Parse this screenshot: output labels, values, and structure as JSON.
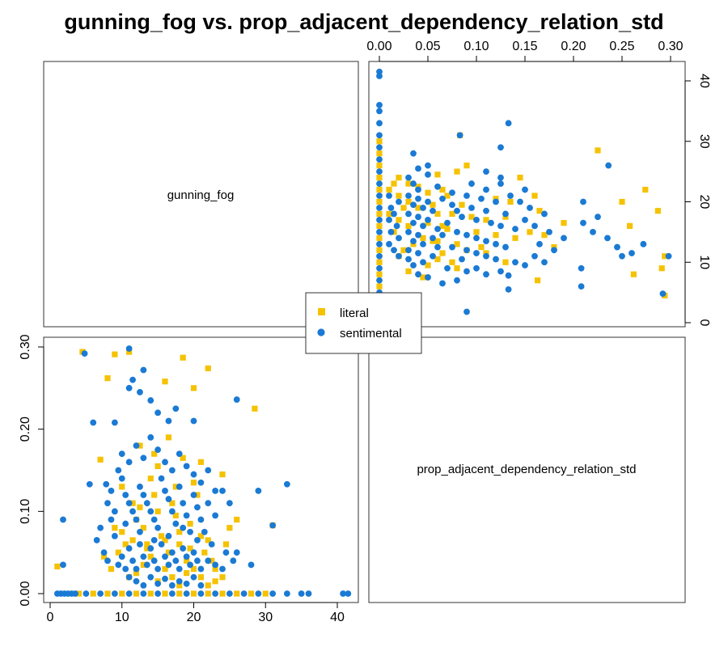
{
  "chart_data": {
    "type": "scatter",
    "title": "gunning_fog vs. prop_adjacent_dependency_relation_std",
    "variables": [
      "gunning_fog",
      "prop_adjacent_dependency_relation_std"
    ],
    "gunning_fog_ticks": [
      0,
      10,
      20,
      30,
      40
    ],
    "prop_ticks": [
      0.0,
      0.05,
      0.1,
      0.15,
      0.2,
      0.25,
      0.3
    ],
    "prop_ticks_left": [
      0.0,
      0.1,
      0.2,
      0.3
    ],
    "xlim_gunning_fog": [
      0,
      42
    ],
    "xlim_prop": [
      0,
      0.31
    ],
    "legend": {
      "position": "center",
      "entries": [
        "literal",
        "sentimental"
      ]
    },
    "colors": {
      "literal": "#F5C200",
      "sentimental": "#1A7AD4"
    },
    "markers": {
      "literal": "square",
      "sentimental": "circle"
    },
    "series": [
      {
        "name": "literal",
        "points": [
          [
            1.0,
            0.033
          ],
          [
            4.5,
            0.294
          ],
          [
            8.0,
            0.262
          ],
          [
            9.0,
            0.291
          ],
          [
            7.0,
            0.163
          ],
          [
            11.0,
            0.294
          ],
          [
            12.5,
            0.105
          ],
          [
            16.0,
            0.258
          ],
          [
            18.5,
            0.287
          ],
          [
            22.0,
            0.274
          ],
          [
            28.5,
            0.225
          ],
          [
            20.0,
            0.25
          ],
          [
            31.0,
            0.083
          ],
          [
            10.0,
            0.13
          ],
          [
            11.5,
            0.11
          ],
          [
            12.0,
            0.09
          ],
          [
            13.0,
            0.08
          ],
          [
            13.5,
            0.06
          ],
          [
            14.0,
            0.14
          ],
          [
            14.5,
            0.12
          ],
          [
            15.0,
            0.1
          ],
          [
            15.5,
            0.07
          ],
          [
            16.5,
            0.05
          ],
          [
            17.0,
            0.11
          ],
          [
            17.5,
            0.095
          ],
          [
            18.0,
            0.06
          ],
          [
            19.0,
            0.04
          ],
          [
            19.5,
            0.085
          ],
          [
            20.5,
            0.12
          ],
          [
            21.0,
            0.07
          ],
          [
            21.5,
            0.05
          ],
          [
            22.5,
            0.04
          ],
          [
            23.0,
            0.03
          ],
          [
            24.0,
            0.145
          ],
          [
            25.0,
            0.08
          ],
          [
            26.0,
            0.09
          ],
          [
            8.5,
            0.03
          ],
          [
            9.5,
            0.05
          ],
          [
            10.5,
            0.06
          ],
          [
            11.0,
            0.02
          ],
          [
            12.0,
            0.025
          ],
          [
            13.0,
            0.035
          ],
          [
            14.0,
            0.045
          ],
          [
            15.0,
            0.015
          ],
          [
            16.0,
            0.03
          ],
          [
            17.0,
            0.02
          ],
          [
            18.0,
            0.01
          ],
          [
            19.0,
            0.025
          ],
          [
            20.0,
            0.03
          ],
          [
            21.0,
            0.02
          ],
          [
            22.0,
            0.01
          ],
          [
            23.0,
            0.015
          ],
          [
            24.0,
            0.02
          ],
          [
            12.5,
            0.18
          ],
          [
            14.5,
            0.17
          ],
          [
            16.5,
            0.19
          ],
          [
            18.5,
            0.165
          ],
          [
            20.0,
            0.135
          ],
          [
            21.0,
            0.16
          ],
          [
            15.0,
            0.155
          ],
          [
            17.5,
            0.13
          ],
          [
            9.0,
            0.08
          ],
          [
            10.0,
            0.075
          ],
          [
            11.5,
            0.065
          ],
          [
            13.5,
            0.055
          ],
          [
            7.5,
            0.045
          ],
          [
            16.0,
            0.065
          ],
          [
            18.0,
            0.075
          ],
          [
            19.5,
            0.055
          ],
          [
            22.0,
            0.065
          ],
          [
            24.5,
            0.06
          ],
          [
            4.0,
            0.0
          ],
          [
            6.0,
            0.0
          ],
          [
            8.0,
            0.0
          ],
          [
            10.0,
            0.0
          ],
          [
            12.0,
            0.0
          ],
          [
            14.0,
            0.0
          ],
          [
            16.0,
            0.0
          ],
          [
            18.0,
            0.0
          ],
          [
            20.0,
            0.0
          ],
          [
            22.0,
            0.0
          ],
          [
            24.0,
            0.0
          ],
          [
            26.0,
            0.0
          ],
          [
            28.0,
            0.0
          ],
          [
            30.0,
            0.0
          ]
        ]
      },
      {
        "name": "sentimental",
        "points": [
          [
            1.8,
            0.035
          ],
          [
            1.8,
            0.09
          ],
          [
            4.8,
            0.292
          ],
          [
            6.0,
            0.208
          ],
          [
            5.5,
            0.133
          ],
          [
            7.8,
            0.133
          ],
          [
            9.0,
            0.208
          ],
          [
            11.0,
            0.298
          ],
          [
            11.5,
            0.26
          ],
          [
            11.0,
            0.25
          ],
          [
            13.0,
            0.272
          ],
          [
            12.5,
            0.245
          ],
          [
            14.0,
            0.235
          ],
          [
            15.0,
            0.22
          ],
          [
            16.5,
            0.21
          ],
          [
            17.5,
            0.225
          ],
          [
            20.0,
            0.21
          ],
          [
            26.0,
            0.236
          ],
          [
            33.0,
            0.133
          ],
          [
            29.0,
            0.125
          ],
          [
            31.0,
            0.083
          ],
          [
            28.0,
            0.035
          ],
          [
            26.0,
            0.05
          ],
          [
            9.5,
            0.15
          ],
          [
            10.0,
            0.14
          ],
          [
            10.5,
            0.12
          ],
          [
            11.0,
            0.11
          ],
          [
            11.5,
            0.1
          ],
          [
            12.0,
            0.09
          ],
          [
            12.5,
            0.13
          ],
          [
            13.0,
            0.12
          ],
          [
            13.5,
            0.11
          ],
          [
            14.0,
            0.1
          ],
          [
            14.5,
            0.09
          ],
          [
            15.0,
            0.08
          ],
          [
            15.5,
            0.14
          ],
          [
            16.0,
            0.125
          ],
          [
            16.5,
            0.115
          ],
          [
            17.0,
            0.1
          ],
          [
            17.5,
            0.085
          ],
          [
            18.0,
            0.13
          ],
          [
            18.5,
            0.11
          ],
          [
            19.0,
            0.095
          ],
          [
            19.5,
            0.075
          ],
          [
            20.0,
            0.12
          ],
          [
            20.5,
            0.105
          ],
          [
            21.0,
            0.09
          ],
          [
            21.5,
            0.075
          ],
          [
            22.0,
            0.11
          ],
          [
            23.0,
            0.095
          ],
          [
            24.0,
            0.125
          ],
          [
            25.0,
            0.11
          ],
          [
            8.0,
            0.11
          ],
          [
            8.5,
            0.09
          ],
          [
            9.0,
            0.07
          ],
          [
            7.0,
            0.08
          ],
          [
            6.5,
            0.065
          ],
          [
            7.5,
            0.05
          ],
          [
            8.0,
            0.04
          ],
          [
            9.5,
            0.035
          ],
          [
            10.0,
            0.045
          ],
          [
            10.5,
            0.03
          ],
          [
            11.0,
            0.055
          ],
          [
            11.5,
            0.04
          ],
          [
            12.0,
            0.03
          ],
          [
            12.5,
            0.06
          ],
          [
            13.0,
            0.045
          ],
          [
            13.5,
            0.035
          ],
          [
            14.0,
            0.055
          ],
          [
            14.5,
            0.04
          ],
          [
            15.0,
            0.03
          ],
          [
            15.5,
            0.06
          ],
          [
            16.0,
            0.045
          ],
          [
            16.5,
            0.035
          ],
          [
            17.0,
            0.05
          ],
          [
            17.5,
            0.04
          ],
          [
            18.0,
            0.03
          ],
          [
            18.5,
            0.055
          ],
          [
            19.0,
            0.045
          ],
          [
            19.5,
            0.035
          ],
          [
            20.0,
            0.05
          ],
          [
            20.5,
            0.04
          ],
          [
            21.0,
            0.03
          ],
          [
            22.0,
            0.04
          ],
          [
            23.0,
            0.035
          ],
          [
            24.0,
            0.03
          ],
          [
            12.0,
            0.18
          ],
          [
            13.0,
            0.165
          ],
          [
            14.0,
            0.19
          ],
          [
            15.0,
            0.175
          ],
          [
            16.0,
            0.16
          ],
          [
            17.0,
            0.15
          ],
          [
            18.0,
            0.17
          ],
          [
            19.0,
            0.155
          ],
          [
            20.0,
            0.145
          ],
          [
            21.0,
            0.135
          ],
          [
            22.0,
            0.15
          ],
          [
            23.0,
            0.125
          ],
          [
            10.0,
            0.17
          ],
          [
            11.0,
            0.16
          ],
          [
            8.5,
            0.125
          ],
          [
            9.0,
            0.1
          ],
          [
            10.5,
            0.085
          ],
          [
            12.5,
            0.075
          ],
          [
            14.5,
            0.065
          ],
          [
            16.5,
            0.07
          ],
          [
            18.5,
            0.08
          ],
          [
            20.5,
            0.065
          ],
          [
            22.5,
            0.06
          ],
          [
            24.5,
            0.05
          ],
          [
            25.5,
            0.04
          ],
          [
            11.0,
            0.02
          ],
          [
            12.0,
            0.015
          ],
          [
            13.0,
            0.01
          ],
          [
            14.0,
            0.02
          ],
          [
            15.0,
            0.012
          ],
          [
            16.0,
            0.018
          ],
          [
            17.0,
            0.01
          ],
          [
            18.0,
            0.015
          ],
          [
            19.0,
            0.012
          ],
          [
            20.0,
            0.02
          ],
          [
            21.0,
            0.01
          ],
          [
            1.0,
            0.0
          ],
          [
            1.5,
            0.0
          ],
          [
            2.0,
            0.0
          ],
          [
            2.5,
            0.0
          ],
          [
            3.0,
            0.0
          ],
          [
            3.5,
            0.0
          ],
          [
            5.0,
            0.0
          ],
          [
            7.0,
            0.0
          ],
          [
            9.0,
            0.0
          ],
          [
            11.0,
            0.0
          ],
          [
            13.0,
            0.0
          ],
          [
            15.0,
            0.0
          ],
          [
            17.0,
            0.0
          ],
          [
            19.0,
            0.0
          ],
          [
            21.0,
            0.0
          ],
          [
            23.0,
            0.0
          ],
          [
            25.0,
            0.0
          ],
          [
            27.0,
            0.0
          ],
          [
            29.0,
            0.0
          ],
          [
            31.0,
            0.0
          ],
          [
            33.0,
            0.0
          ],
          [
            35.0,
            0.0
          ],
          [
            36.0,
            0.0
          ],
          [
            40.8,
            0.0
          ],
          [
            41.5,
            0.0
          ]
        ]
      }
    ]
  }
}
